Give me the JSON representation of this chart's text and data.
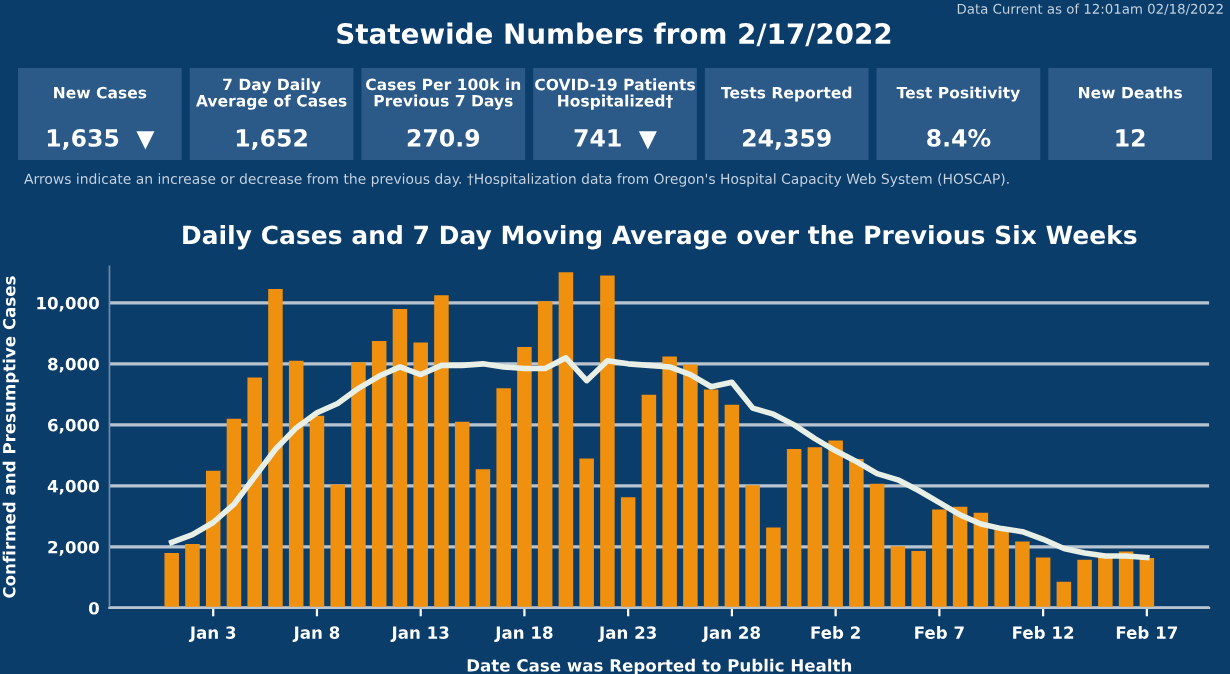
{
  "chart_data": [
    {
      "type": "other",
      "title": "Statewide Numbers from 2/17/2022",
      "categories": [
        "New Cases",
        "7 Day Daily\nAverage of Cases",
        "Cases Per 100k in\nPrevious 7 Days",
        "COVID-19 Patients\nHospitalized†",
        "Tests Reported",
        "Test Positivity",
        "New Deaths"
      ],
      "value_labels": [
        "1,635  ▼",
        "1,652",
        "270.9",
        "741  ▼",
        "24,359",
        "8.4%",
        "12"
      ],
      "annotations": [
        "Data Current as of 12:01am 02/18/2022",
        "Arrows indicate an increase or decrease from the previous day. †Hospitalization data from Oregon's Hospital Capacity Web System (HOSCAP)."
      ]
    },
    {
      "type": "bar",
      "title": "Daily Cases and 7 Day Moving Average over the Previous Six Weeks",
      "xlabel": "Date Case was Reported to Public Health",
      "ylabel": "Confirmed and Presumptive Cases",
      "x": [
        "2022-01-01",
        "2022-01-02",
        "2022-01-03",
        "2022-01-04",
        "2022-01-05",
        "2022-01-06",
        "2022-01-07",
        "2022-01-08",
        "2022-01-09",
        "2022-01-10",
        "2022-01-11",
        "2022-01-12",
        "2022-01-13",
        "2022-01-14",
        "2022-01-15",
        "2022-01-16",
        "2022-01-17",
        "2022-01-18",
        "2022-01-19",
        "2022-01-20",
        "2022-01-21",
        "2022-01-22",
        "2022-01-23",
        "2022-01-24",
        "2022-01-25",
        "2022-01-26",
        "2022-01-27",
        "2022-01-28",
        "2022-01-29",
        "2022-01-30",
        "2022-01-31",
        "2022-02-01",
        "2022-02-02",
        "2022-02-03",
        "2022-02-04",
        "2022-02-05",
        "2022-02-06",
        "2022-02-07",
        "2022-02-08",
        "2022-02-09",
        "2022-02-10",
        "2022-02-11",
        "2022-02-12",
        "2022-02-13",
        "2022-02-14",
        "2022-02-15",
        "2022-02-16",
        "2022-02-17"
      ],
      "series": [
        {
          "type": "bar",
          "color": "#f0900f",
          "values": [
            1800,
            2100,
            4500,
            6200,
            7550,
            10450,
            8100,
            6300,
            4050,
            8050,
            8750,
            9800,
            8700,
            10250,
            6100,
            4550,
            7200,
            8550,
            10050,
            11000,
            4900,
            10900,
            3630,
            6990,
            8240,
            7980,
            7160,
            6660,
            4020,
            2640,
            5210,
            5270,
            5490,
            4880,
            4070,
            2020,
            1870,
            3230,
            3320,
            3120,
            2640,
            2180,
            1650,
            860,
            1580,
            1740,
            1850,
            1640
          ]
        },
        {
          "type": "line",
          "color": "#e8efe6",
          "values": [
            2150,
            2400,
            2800,
            3400,
            4300,
            5200,
            5900,
            6400,
            6700,
            7200,
            7600,
            7900,
            7650,
            7950,
            7950,
            8000,
            7900,
            7850,
            7850,
            8200,
            7450,
            8100,
            8000,
            7950,
            7900,
            7650,
            7250,
            7400,
            6550,
            6350,
            6000,
            5550,
            5150,
            4800,
            4400,
            4200,
            3850,
            3450,
            3050,
            2750,
            2600,
            2500,
            2250,
            1950,
            1800,
            1700,
            1700,
            1650
          ]
        }
      ],
      "xlim": [
        "2021-12-29",
        "2022-02-20"
      ],
      "xticks": [
        {
          "value": "2022-01-03",
          "label": "Jan 3"
        },
        {
          "value": "2022-01-08",
          "label": "Jan 8"
        },
        {
          "value": "2022-01-13",
          "label": "Jan 13"
        },
        {
          "value": "2022-01-18",
          "label": "Jan 18"
        },
        {
          "value": "2022-01-23",
          "label": "Jan 23"
        },
        {
          "value": "2022-01-28",
          "label": "Jan 28"
        },
        {
          "value": "2022-02-02",
          "label": "Feb 2"
        },
        {
          "value": "2022-02-07",
          "label": "Feb 7"
        },
        {
          "value": "2022-02-12",
          "label": "Feb 12"
        },
        {
          "value": "2022-02-17",
          "label": "Feb 17"
        }
      ],
      "ylim": [
        0,
        11200
      ],
      "yticks": [
        0,
        {
          "value": 2000,
          "label": "2,000"
        },
        {
          "value": 4000,
          "label": "4,000"
        },
        {
          "value": 6000,
          "label": "6,000"
        },
        {
          "value": 8000,
          "label": "8,000"
        },
        {
          "value": 10000,
          "label": "10,000"
        }
      ],
      "grid": "y",
      "marker": "none",
      "line_style": "solid"
    }
  ]
}
